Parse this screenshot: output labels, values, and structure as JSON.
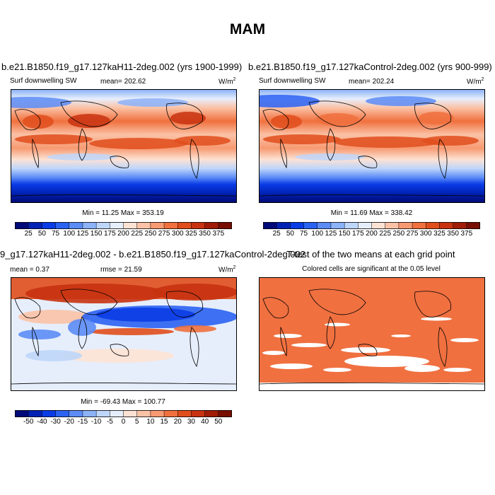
{
  "title": "MAM",
  "panels": [
    {
      "id": "p1",
      "title": "b.e21.B1850.f19_g17.127kaH11-2deg.002 (yrs 1900-1999)",
      "left_label": "Surf downwelling SW",
      "center_label": "mean= 202.62",
      "unit_base": "W/m",
      "unit_exp": "2",
      "stats": "Min =  11.25 Max = 353.19",
      "type": "field"
    },
    {
      "id": "p2",
      "title": "b.e21.B1850.f19_g17.127kaControl-2deg.002 (yrs 900-999)",
      "left_label": "Surf downwelling SW",
      "center_label": "mean= 202.24",
      "unit_base": "W/m",
      "unit_exp": "2",
      "stats": "Min =  11.69 Max = 338.42",
      "type": "field"
    },
    {
      "id": "p3",
      "title": "9_g17.127kaH11-2deg.002 - b.e21.B1850.f19_g17.127kaControl-2deg.002",
      "left_label": "mean =   0.37",
      "center_label": "rmse =  21.59",
      "unit_base": "W/m",
      "unit_exp": "2",
      "stats": "Min = -69.43 Max = 100.77",
      "type": "difference"
    },
    {
      "id": "p4",
      "title": "T-test of the two means at each grid point",
      "subtitle": "Colored cells are significant at the 0.05 level",
      "type": "significance"
    }
  ],
  "colorbar_field": {
    "labels": [
      "25",
      "50",
      "75",
      "100",
      "125",
      "150",
      "175",
      "200",
      "225",
      "250",
      "275",
      "300",
      "325",
      "350",
      "375"
    ],
    "colors": [
      "#000a78",
      "#0022b4",
      "#0a3ce6",
      "#2b62f2",
      "#5c8cf6",
      "#8cb2f8",
      "#bed6fa",
      "#e6eefc",
      "#fde2d4",
      "#fbc2a6",
      "#f79a72",
      "#f0703e",
      "#e04e1c",
      "#c83210",
      "#a01c06",
      "#780e02"
    ]
  },
  "colorbar_diff": {
    "labels": [
      "-50",
      "-40",
      "-30",
      "-20",
      "-15",
      "-10",
      "-5",
      "0",
      "5",
      "10",
      "15",
      "20",
      "30",
      "40",
      "50"
    ],
    "colors": [
      "#000a78",
      "#0022b4",
      "#0a3ce6",
      "#2b62f2",
      "#5c8cf6",
      "#8cb2f8",
      "#bed6fa",
      "#e6eefc",
      "#fde2d4",
      "#fbc2a6",
      "#f79a72",
      "#f0703e",
      "#e04e1c",
      "#c83210",
      "#a01c06",
      "#780e02"
    ]
  },
  "significance_color": "#f07040"
}
